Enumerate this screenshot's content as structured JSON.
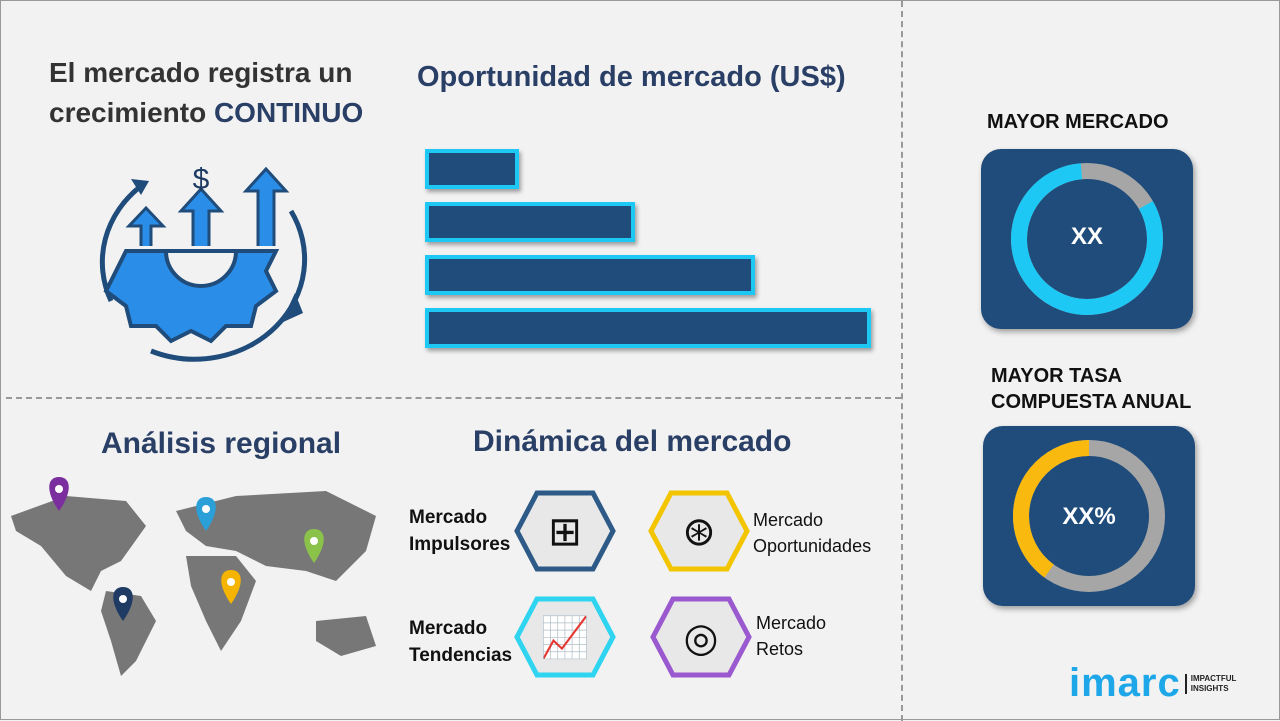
{
  "headline": {
    "line1": "El mercado registra un",
    "line2_prefix": "crecimiento ",
    "line2_emphasis": "CONTINUO"
  },
  "opportunity": {
    "title": "Oportunidad de mercado (US$)",
    "bar_levels": [
      0.21,
      0.47,
      0.74,
      1.0
    ]
  },
  "regional": {
    "title": "Análisis regional",
    "pin_colors": [
      "#7b2f9e",
      "#2a9fd8",
      "#8bc34a",
      "#f4b400",
      "#1f3b63"
    ]
  },
  "dynamics": {
    "title": "Dinámica del mercado",
    "items": [
      {
        "line1": "Mercado",
        "line2": "Impulsores",
        "color": "#2e5a88",
        "icon": "puzzle-icon"
      },
      {
        "line1": "Mercado",
        "line2": "Oportunidades",
        "color": "#f2c500",
        "icon": "dollar-search-icon"
      },
      {
        "line1": "Mercado",
        "line2": "Tendencias",
        "color": "#2ed4f0",
        "icon": "chart-growth-icon"
      },
      {
        "line1": "Mercado",
        "line2": "Retos",
        "color": "#9b59d0",
        "icon": "target-icon"
      }
    ]
  },
  "largest": {
    "title": "MAYOR MERCADO",
    "value": "XX",
    "fill": 0.82,
    "color": "#1ec8f5"
  },
  "cagr": {
    "title_line1": "MAYOR TASA",
    "title_line2": "COMPUESTA ANUAL",
    "value": "XX%",
    "fill": 0.4,
    "color": "#f9b90f"
  },
  "logo": {
    "brand": "imarc",
    "tag1": "IMPACTFUL",
    "tag2": "INSIGHTS"
  }
}
